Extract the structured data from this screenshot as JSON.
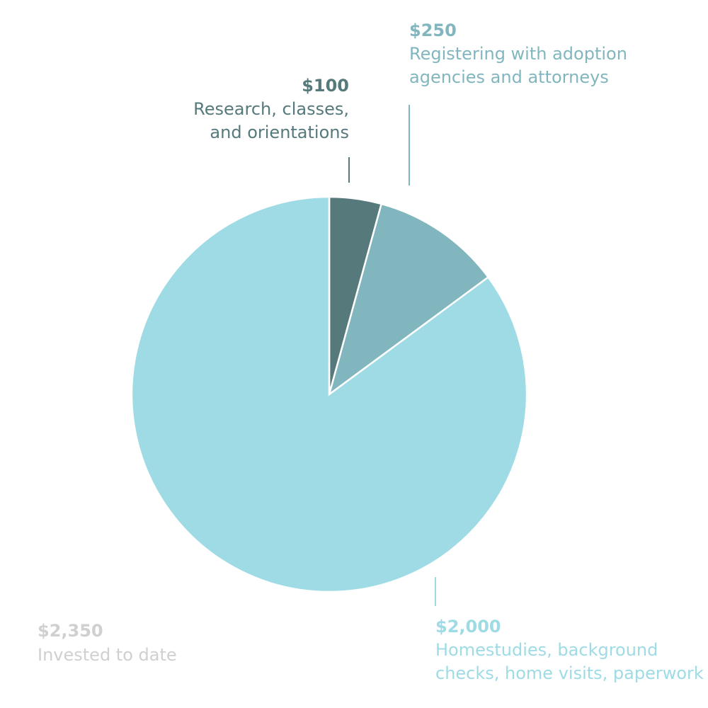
{
  "chart_data": {
    "type": "pie",
    "categories": [
      [
        "Research, classes,",
        "and orientations"
      ],
      [
        "Registering with adoption",
        "agencies and attorneys"
      ],
      [
        "Homestudies, background",
        "checks, home visits, paperwork"
      ]
    ],
    "values": [
      100,
      250,
      2000
    ],
    "value_labels": [
      "$100",
      "$250",
      "$2,000"
    ],
    "colors": [
      "#56797c",
      "#82b6bf",
      "#9fdbe5"
    ],
    "total": {
      "value": 2350,
      "label": "$2,350"
    },
    "total_caption": "Invested to date",
    "total_color": "#d0d0d0"
  }
}
